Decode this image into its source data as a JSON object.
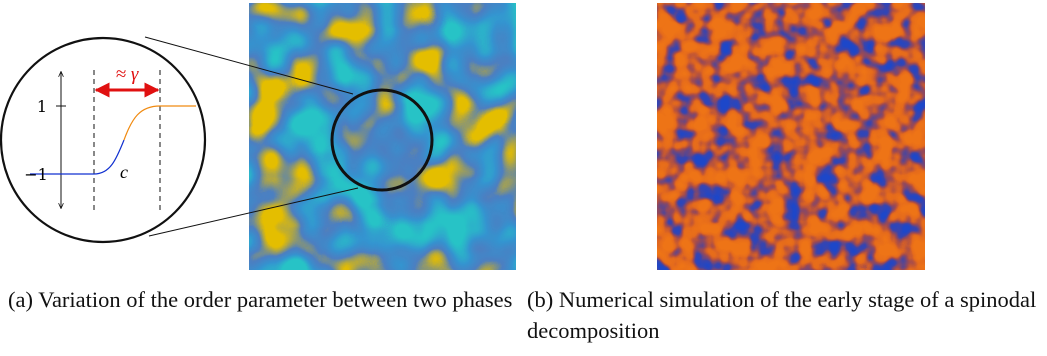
{
  "panel_a": {
    "inset": {
      "tick_1": "1",
      "tick_minus_1": "−1",
      "interface_label": "c",
      "width_label": "≈ γ"
    },
    "caption": "(a) Variation of the order parameter between two phases",
    "colors": {
      "phase_low": "#28c4c8",
      "phase_high": "#e6c000",
      "interface": "#2f6fd6",
      "curve_low": "#1030d0",
      "curve_high": "#f08a10",
      "arrow": "#e01010"
    },
    "image_desc": "Late-stage phase separation pattern"
  },
  "panel_b": {
    "caption": "(b) Numerical simulation of the early stage of a spinodal decomposition",
    "colors": {
      "phase_low": "#1f4fd0",
      "phase_high": "#f07818"
    }
  }
}
